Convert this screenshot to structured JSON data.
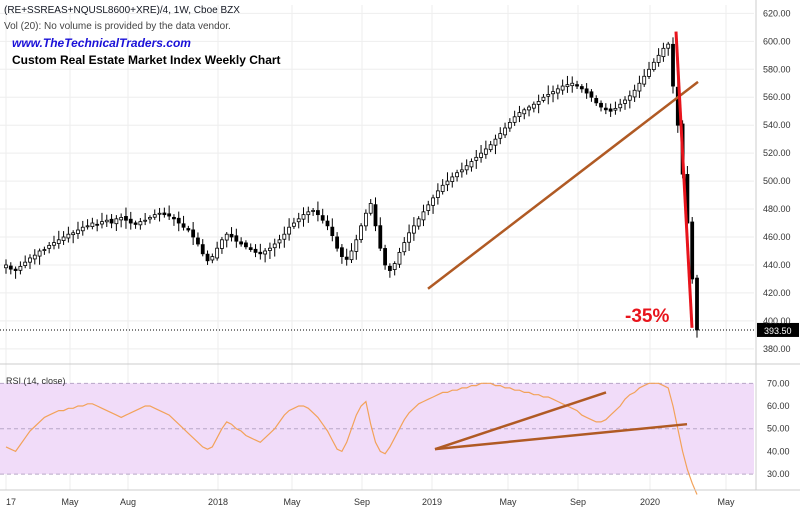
{
  "header": {
    "symbol_line": "(RE+SSREAS+NQUSL8600+XRE)/4, 1W, Cboe BZX",
    "vol_line": "Vol (20): No volume is provided by the data vendor.",
    "website": "www.TheTechnicalTraders.com",
    "title": "Custom Real Estate Market Index Weekly Chart"
  },
  "colors": {
    "candle_up_fill": "#ffffff",
    "candle_down_fill": "#000000",
    "candle_outline": "#000000",
    "trendline": "#b05a24",
    "crash_line": "#e8141c",
    "annotation": "#e8141c",
    "rsi_line": "#f2a25a",
    "rsi_band": "#f1dcf9",
    "grid": "#eeeeee",
    "price_tag_bg": "#000000"
  },
  "chart_data": [
    {
      "type": "candlestick",
      "panel": "price",
      "x_ticks": [
        "17",
        "May",
        "Aug",
        "2018",
        "May",
        "Sep",
        "2019",
        "May",
        "Sep",
        "2020",
        "May"
      ],
      "y_ticks": [
        380,
        400,
        420,
        440,
        460,
        480,
        500,
        520,
        540,
        560,
        580,
        600,
        620
      ],
      "ylim": [
        372,
        626
      ],
      "last_price_label": "393.50",
      "last_price": 393.5,
      "annotation": "-35%",
      "grid": true,
      "weekly_closes": [
        440,
        437,
        436,
        439,
        442,
        445,
        447,
        450,
        451,
        454,
        456,
        458,
        460,
        462,
        463,
        465,
        467,
        468,
        470,
        469,
        471,
        472,
        470,
        473,
        474,
        472,
        470,
        469,
        471,
        472,
        474,
        476,
        477,
        476,
        475,
        473,
        470,
        467,
        465,
        460,
        455,
        448,
        443,
        446,
        452,
        458,
        462,
        460,
        457,
        455,
        453,
        451,
        449,
        448,
        450,
        452,
        455,
        458,
        462,
        467,
        470,
        473,
        476,
        478,
        479,
        476,
        472,
        468,
        461,
        452,
        446,
        444,
        450,
        458,
        468,
        477,
        484,
        468,
        452,
        440,
        436,
        441,
        449,
        456,
        463,
        468,
        473,
        478,
        483,
        488,
        493,
        497,
        500,
        503,
        506,
        508,
        511,
        514,
        517,
        520,
        523,
        526,
        530,
        534,
        538,
        542,
        546,
        549,
        551,
        553,
        555,
        557,
        560,
        562,
        564,
        566,
        568,
        569,
        570,
        568,
        566,
        563,
        560,
        556,
        553,
        551,
        550,
        552,
        555,
        558,
        561,
        565,
        570,
        575,
        580,
        585,
        590,
        595,
        598,
        568,
        540,
        505,
        470,
        430,
        393.5
      ]
    },
    {
      "type": "line",
      "panel": "rsi",
      "series": [
        {
          "name": "RSI (14, close)",
          "values": [
            42,
            41,
            40,
            43,
            46,
            49,
            51,
            53,
            55,
            56,
            57,
            58,
            58,
            59,
            59,
            60,
            60,
            61,
            61,
            60,
            59,
            58,
            57,
            56,
            55,
            56,
            57,
            58,
            59,
            60,
            60,
            59,
            58,
            57,
            56,
            54,
            52,
            50,
            48,
            46,
            44,
            42,
            41,
            42,
            46,
            50,
            53,
            52,
            50,
            49,
            47,
            46,
            45,
            44,
            46,
            48,
            50,
            53,
            56,
            58,
            59,
            60,
            60,
            59,
            57,
            55,
            52,
            49,
            45,
            41,
            40,
            44,
            50,
            56,
            60,
            62,
            52,
            44,
            40,
            39,
            42,
            46,
            50,
            54,
            57,
            59,
            61,
            62,
            63,
            64,
            65,
            66,
            66,
            67,
            67,
            68,
            68,
            69,
            69,
            70,
            70,
            70,
            69,
            69,
            68,
            68,
            67,
            67,
            66,
            66,
            65,
            65,
            64,
            64,
            63,
            62,
            61,
            60,
            59,
            58,
            56,
            55,
            54,
            53,
            53,
            54,
            56,
            58,
            60,
            63,
            65,
            66,
            68,
            69,
            70,
            70,
            70,
            69,
            68,
            60,
            50,
            40,
            32,
            26,
            21
          ]
        }
      ],
      "y_ticks": [
        30,
        40,
        50,
        60,
        70
      ],
      "ylim": [
        23,
        75
      ],
      "band": [
        30,
        70
      ]
    }
  ]
}
